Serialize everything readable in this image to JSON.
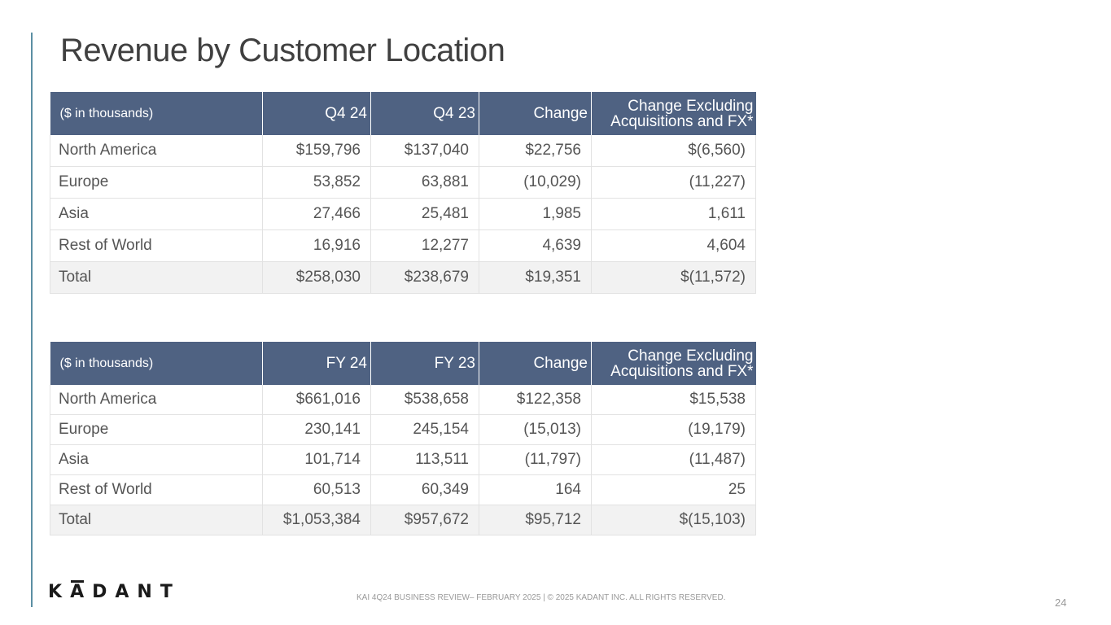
{
  "title": "Revenue by Customer Location",
  "table_q4": {
    "headers": [
      "($ in thousands)",
      "Q4 24",
      "Q4 23",
      "Change",
      "Change Excluding",
      "Acquisitions and FX*"
    ],
    "rows": [
      [
        "North America",
        "$159,796",
        "$137,040",
        "$22,756",
        "$(6,560)"
      ],
      [
        "Europe",
        "53,852",
        "63,881",
        "(10,029)",
        "(11,227)"
      ],
      [
        "Asia",
        "27,466",
        "25,481",
        "1,985",
        "1,611"
      ],
      [
        "Rest of World",
        "16,916",
        "12,277",
        "4,639",
        "4,604"
      ],
      [
        "Total",
        "$258,030",
        "$238,679",
        "$19,351",
        "$(11,572)"
      ]
    ]
  },
  "table_fy": {
    "headers": [
      "($ in thousands)",
      "FY 24",
      "FY 23",
      "Change",
      "Change Excluding",
      "Acquisitions and FX*"
    ],
    "rows": [
      [
        "North America",
        "$661,016",
        "$538,658",
        "$122,358",
        "$15,538"
      ],
      [
        "Europe",
        "230,141",
        "245,154",
        "(15,013)",
        "(19,179)"
      ],
      [
        "Asia",
        "101,714",
        "113,511",
        "(11,797)",
        "(11,487)"
      ],
      [
        "Rest of World",
        "60,513",
        "60,349",
        "164",
        "25"
      ],
      [
        "Total",
        "$1,053,384",
        "$957,672",
        "$95,712",
        "$(15,103)"
      ]
    ]
  },
  "logo": {
    "text": "KADANT"
  },
  "footer": "KAI 4Q24 BUSINESS REVIEW– FEBRUARY 2025 | © 2025 KADANT INC. ALL RIGHTS RESERVED.",
  "page_number": "24",
  "colors": {
    "header_bg": "#4f6282",
    "accent_rule": "#5b8fa3",
    "total_row_bg": "#f2f2f2"
  }
}
